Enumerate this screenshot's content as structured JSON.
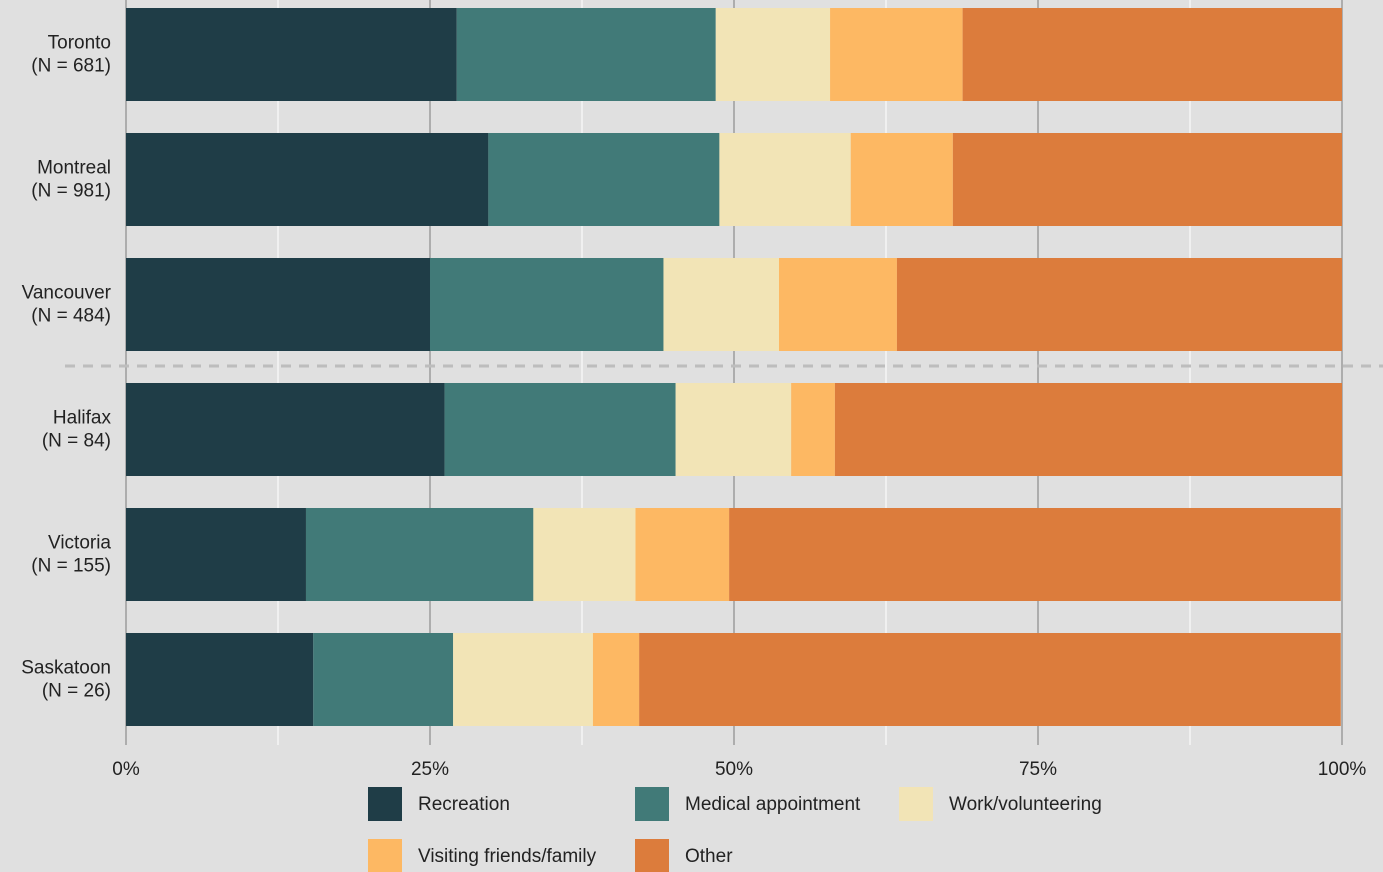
{
  "chart_data": {
    "type": "stacked_barh",
    "categories": [
      "Toronto",
      "Montreal",
      "Vancouver",
      "Halifax",
      "Victoria",
      "Saskatoon"
    ],
    "sample_sizes": [
      "(N = 681)",
      "(N = 981)",
      "(N = 484)",
      "(N = 84)",
      "(N = 155)",
      "(N = 26)"
    ],
    "series": [
      {
        "name": "Recreation",
        "color": "#1f3d47",
        "values": [
          27.2,
          29.8,
          25.0,
          26.2,
          14.8,
          15.4
        ]
      },
      {
        "name": "Medical appointment",
        "color": "#417a78",
        "values": [
          21.3,
          19.0,
          19.2,
          19.0,
          18.7,
          11.5
        ]
      },
      {
        "name": "Work/volunteering",
        "color": "#f2e4b6",
        "values": [
          9.4,
          10.8,
          9.5,
          9.5,
          8.4,
          11.5
        ]
      },
      {
        "name": "Visiting friends/family",
        "color": "#fdb863",
        "values": [
          10.9,
          8.4,
          9.7,
          3.6,
          7.7,
          3.8
        ]
      },
      {
        "name": "Other",
        "color": "#dc7c3c",
        "values": [
          31.2,
          32.0,
          36.6,
          41.7,
          50.3,
          57.7
        ]
      }
    ],
    "xlim": [
      0,
      100
    ],
    "xticks": [
      {
        "value": 0,
        "label": "0%"
      },
      {
        "value": 25,
        "label": "25%"
      },
      {
        "value": 50,
        "label": "50%"
      },
      {
        "value": 75,
        "label": "75%"
      },
      {
        "value": 100,
        "label": "100%"
      }
    ],
    "minor_xticks": [
      12.5,
      37.5,
      62.5,
      87.5
    ],
    "grid": true,
    "legend": "bottom"
  }
}
